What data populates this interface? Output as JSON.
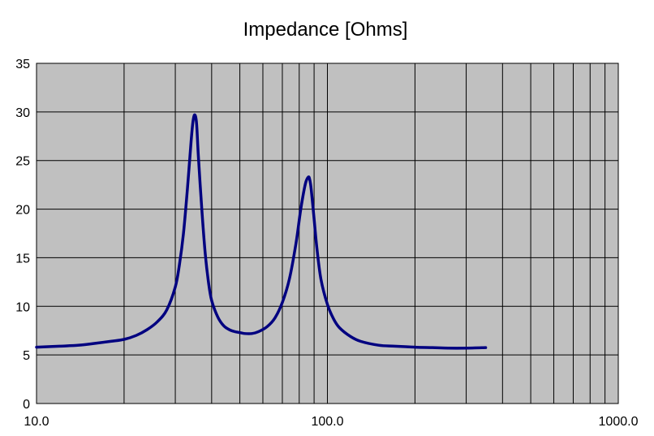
{
  "chart_data": {
    "type": "line",
    "title": "Impedance [Ohms]",
    "xlabel": "",
    "ylabel": "",
    "xscale": "log",
    "xlim": [
      10,
      1000
    ],
    "ylim": [
      0,
      35
    ],
    "grid": true,
    "legend": "none",
    "colors": {
      "plot_background": "#c0c0c0",
      "grid": "#000000",
      "line": "#000080"
    },
    "x_tick_labels": [
      "10.0",
      "100.0",
      "1000.0"
    ],
    "y_tick_labels": [
      "0",
      "5",
      "10",
      "15",
      "20",
      "25",
      "30",
      "35"
    ],
    "series": [
      {
        "x": [
          10,
          12,
          14,
          16,
          18,
          20,
          22,
          24,
          26,
          28,
          30,
          31,
          32,
          33,
          34,
          34.5,
          35,
          35.5,
          36,
          37,
          38,
          39,
          40,
          42,
          44,
          46,
          48,
          50,
          52,
          55,
          58,
          62,
          66,
          70,
          74,
          78,
          81,
          84,
          86,
          87,
          88,
          90,
          92,
          95,
          100,
          105,
          110,
          120,
          130,
          150,
          170,
          200,
          230,
          260,
          300,
          350
        ],
        "y": [
          5.8,
          5.9,
          6.0,
          6.2,
          6.4,
          6.6,
          7.0,
          7.6,
          8.4,
          9.6,
          12.0,
          14.3,
          17.5,
          22.0,
          27.0,
          29.0,
          29.7,
          28.8,
          25.5,
          20.0,
          15.5,
          12.5,
          10.6,
          8.9,
          8.0,
          7.6,
          7.4,
          7.3,
          7.2,
          7.2,
          7.4,
          7.9,
          8.8,
          10.4,
          12.8,
          16.5,
          20.0,
          22.6,
          23.3,
          23.0,
          22.0,
          19.0,
          16.0,
          12.8,
          10.2,
          8.7,
          7.8,
          6.9,
          6.4,
          6.0,
          5.9,
          5.8,
          5.75,
          5.7,
          5.7,
          5.75
        ]
      }
    ]
  }
}
